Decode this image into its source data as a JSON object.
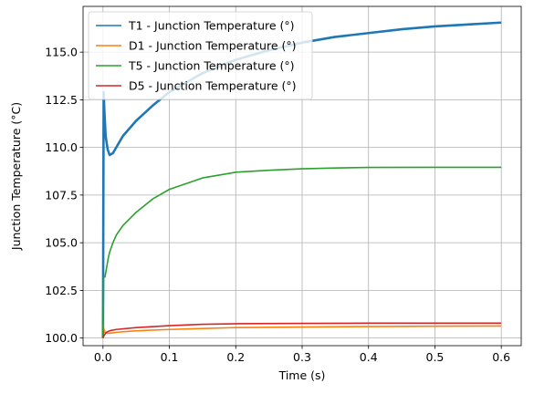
{
  "chart_data": {
    "type": "line",
    "title": "",
    "xlabel": "Time (s)",
    "ylabel": "Junction Temperature (°C)",
    "xlim": [
      -0.03,
      0.63
    ],
    "ylim": [
      99.6,
      117.4
    ],
    "xticks": [
      0.0,
      0.1,
      0.2,
      0.3,
      0.4,
      0.5,
      0.6
    ],
    "xtick_labels": [
      "0.0",
      "0.1",
      "0.2",
      "0.3",
      "0.4",
      "0.5",
      "0.6"
    ],
    "yticks": [
      100.0,
      102.5,
      105.0,
      107.5,
      110.0,
      112.5,
      115.0
    ],
    "ytick_labels": [
      "100.0",
      "102.5",
      "105.0",
      "107.5",
      "110.0",
      "112.5",
      "115.0"
    ],
    "grid": true,
    "legend_position": "top-left",
    "series": [
      {
        "name": "T1 - Junction Temperature (°)",
        "color": "#1f77b4",
        "x": [
          0.0,
          0.001,
          0.002,
          0.004,
          0.007,
          0.01,
          0.015,
          0.02,
          0.03,
          0.05,
          0.075,
          0.1,
          0.15,
          0.2,
          0.25,
          0.3,
          0.35,
          0.4,
          0.45,
          0.5,
          0.55,
          0.6
        ],
        "y": [
          100.0,
          112.9,
          112.0,
          110.6,
          109.9,
          109.6,
          109.7,
          110.0,
          110.6,
          111.4,
          112.2,
          112.9,
          113.9,
          114.6,
          115.1,
          115.5,
          115.8,
          116.0,
          116.2,
          116.35,
          116.45,
          116.55
        ]
      },
      {
        "name": "D1 - Junction Temperature (°)",
        "color": "#ff7f0e",
        "x": [
          0.0,
          0.001,
          0.003,
          0.006,
          0.01,
          0.02,
          0.05,
          0.1,
          0.15,
          0.2,
          0.3,
          0.4,
          0.5,
          0.6
        ],
        "y": [
          100.7,
          100.5,
          100.3,
          100.25,
          100.25,
          100.3,
          100.38,
          100.45,
          100.5,
          100.55,
          100.58,
          100.6,
          100.62,
          100.63
        ]
      },
      {
        "name": "T5 - Junction Temperature (°)",
        "color": "#2ca02c",
        "x": [
          0.0,
          0.001,
          0.003,
          0.005,
          0.008,
          0.01,
          0.015,
          0.02,
          0.03,
          0.05,
          0.075,
          0.1,
          0.125,
          0.15,
          0.2,
          0.25,
          0.3,
          0.35,
          0.4,
          0.5,
          0.6
        ],
        "y": [
          100.0,
          103.2,
          103.2,
          103.6,
          104.2,
          104.5,
          105.0,
          105.4,
          105.9,
          106.6,
          107.3,
          107.8,
          108.1,
          108.4,
          108.7,
          108.8,
          108.88,
          108.92,
          108.95,
          108.96,
          108.96
        ]
      },
      {
        "name": "D5 - Junction Temperature (°)",
        "color": "#d62728",
        "x": [
          0.0,
          0.001,
          0.003,
          0.005,
          0.008,
          0.012,
          0.02,
          0.05,
          0.1,
          0.15,
          0.2,
          0.3,
          0.4,
          0.5,
          0.6
        ],
        "y": [
          100.0,
          100.1,
          100.2,
          100.3,
          100.35,
          100.4,
          100.45,
          100.55,
          100.65,
          100.72,
          100.75,
          100.77,
          100.78,
          100.78,
          100.78
        ]
      }
    ]
  }
}
